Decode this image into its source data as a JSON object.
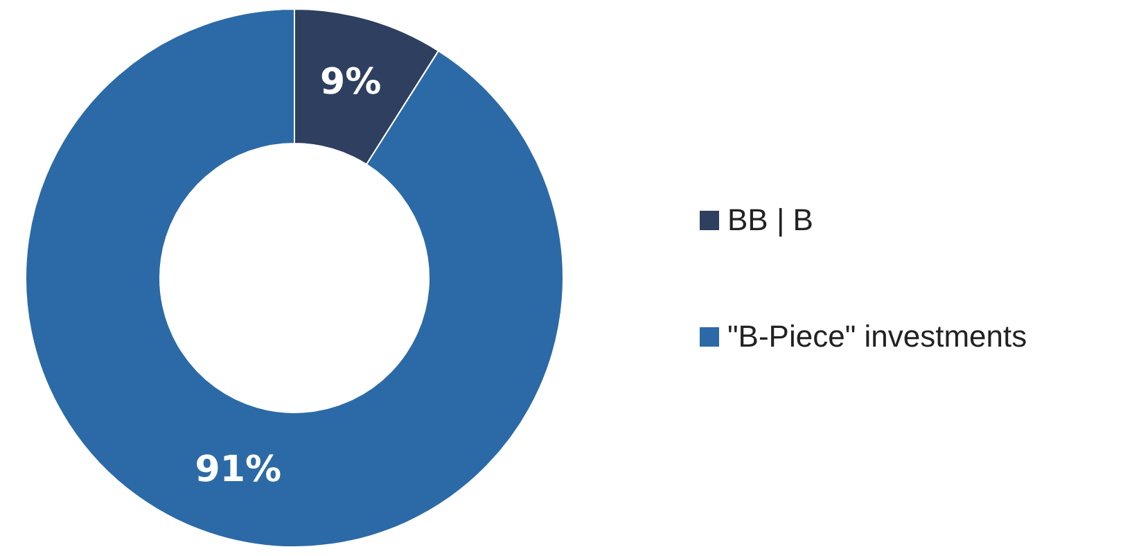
{
  "chart_data": {
    "type": "donut",
    "categories": [
      "BB | B",
      "\"B-Piece\" investments"
    ],
    "values": [
      9,
      91
    ],
    "colors": [
      "#2e3f5f",
      "#2b6aa6"
    ],
    "value_labels": [
      "9%",
      "91%"
    ],
    "legend": "right"
  }
}
